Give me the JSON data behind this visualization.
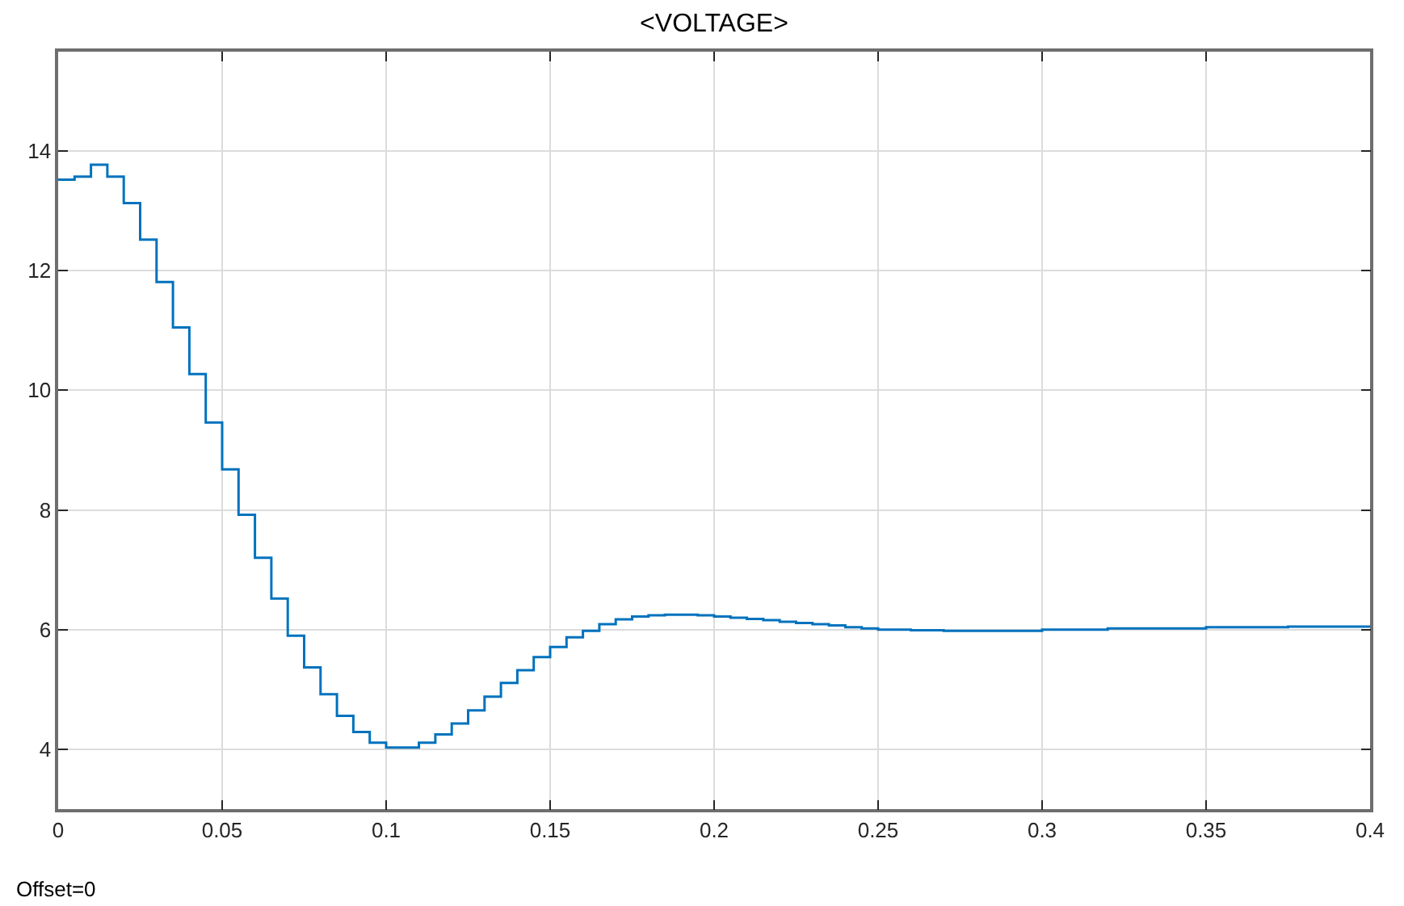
{
  "chart_data": {
    "type": "step",
    "title": "<VOLTAGE>",
    "x": [
      0,
      0.005,
      0.01,
      0.015,
      0.02,
      0.025,
      0.03,
      0.035,
      0.04,
      0.045,
      0.05,
      0.055,
      0.06,
      0.065,
      0.07,
      0.075,
      0.08,
      0.085,
      0.09,
      0.095,
      0.1,
      0.105,
      0.11,
      0.115,
      0.12,
      0.125,
      0.13,
      0.135,
      0.14,
      0.145,
      0.15,
      0.155,
      0.16,
      0.165,
      0.17,
      0.175,
      0.18,
      0.185,
      0.19,
      0.195,
      0.2,
      0.205,
      0.21,
      0.215,
      0.22,
      0.225,
      0.23,
      0.235,
      0.24,
      0.245,
      0.25,
      0.26,
      0.27,
      0.28,
      0.3,
      0.32,
      0.35,
      0.375,
      0.4
    ],
    "series": [
      {
        "color": "#0072bd",
        "values": [
          13.52,
          13.57,
          13.77,
          13.57,
          13.13,
          12.52,
          11.81,
          11.05,
          10.27,
          9.46,
          8.68,
          7.92,
          7.2,
          6.52,
          5.9,
          5.37,
          4.92,
          4.56,
          4.29,
          4.11,
          4.03,
          4.03,
          4.11,
          4.25,
          4.43,
          4.65,
          4.88,
          5.11,
          5.32,
          5.54,
          5.71,
          5.87,
          5.98,
          6.09,
          6.17,
          6.22,
          6.24,
          6.25,
          6.25,
          6.24,
          6.22,
          6.2,
          6.18,
          6.16,
          6.13,
          6.11,
          6.09,
          6.07,
          6.04,
          6.02,
          6.0,
          5.99,
          5.98,
          5.98,
          6.0,
          6.02,
          6.04,
          6.05,
          6.05
        ]
      }
    ],
    "xlim": [
      0,
      0.4
    ],
    "xticks": [
      0,
      0.05,
      0.1,
      0.15,
      0.2,
      0.25,
      0.3,
      0.35,
      0.4
    ],
    "ylim": [
      3,
      15.66
    ],
    "yticks": [
      4,
      6,
      8,
      10,
      12,
      14
    ],
    "grid": true,
    "line_style": "solid",
    "marker": "none",
    "annotations": [
      "Offset=0"
    ]
  }
}
